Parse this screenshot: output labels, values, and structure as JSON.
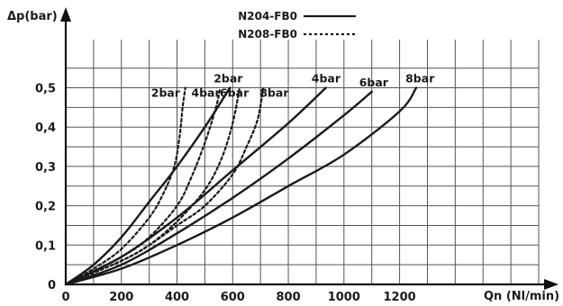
{
  "chart_data": {
    "type": "line",
    "ylabel": "Δp(bar)",
    "xlabel": "Qn (Nl/min)",
    "xlim": [
      0,
      1700
    ],
    "ylim": [
      0,
      0.65
    ],
    "x_ticks": [
      0,
      200,
      400,
      600,
      800,
      1000,
      1200
    ],
    "x_tick_labels": [
      "0",
      "200",
      "400",
      "600",
      "800",
      "1000",
      "1200"
    ],
    "y_ticks": [
      0,
      0.1,
      0.2,
      0.3,
      0.4,
      0.5
    ],
    "y_tick_labels": [
      "0",
      "0,1",
      "0,2",
      "0,3",
      "0,4",
      "0,5"
    ],
    "grid": true,
    "legend": [
      {
        "name": "N204-FB0",
        "style": "solid"
      },
      {
        "name": "N208-FB0",
        "style": "dotted"
      }
    ],
    "series": [
      {
        "label": "2bar",
        "model": "N204-FB0",
        "style": "solid",
        "points": [
          [
            0,
            0
          ],
          [
            100,
            0.05
          ],
          [
            200,
            0.12
          ],
          [
            300,
            0.21
          ],
          [
            400,
            0.3
          ],
          [
            500,
            0.4
          ],
          [
            590,
            0.5
          ]
        ]
      },
      {
        "label": "4bar",
        "model": "N204-FB0",
        "style": "solid",
        "points": [
          [
            0,
            0
          ],
          [
            200,
            0.07
          ],
          [
            400,
            0.17
          ],
          [
            600,
            0.29
          ],
          [
            800,
            0.41
          ],
          [
            935,
            0.5
          ]
        ]
      },
      {
        "label": "6bar",
        "model": "N204-FB0",
        "style": "solid",
        "points": [
          [
            0,
            0
          ],
          [
            200,
            0.05
          ],
          [
            400,
            0.13
          ],
          [
            600,
            0.22
          ],
          [
            800,
            0.32
          ],
          [
            1000,
            0.43
          ],
          [
            1100,
            0.49
          ]
        ]
      },
      {
        "label": "8bar",
        "model": "N204-FB0",
        "style": "solid",
        "points": [
          [
            0,
            0
          ],
          [
            200,
            0.04
          ],
          [
            400,
            0.1
          ],
          [
            600,
            0.17
          ],
          [
            800,
            0.25
          ],
          [
            1000,
            0.33
          ],
          [
            1200,
            0.44
          ],
          [
            1260,
            0.5
          ]
        ]
      },
      {
        "label": "2bar",
        "model": "N208-FB0",
        "style": "dotted",
        "points": [
          [
            0,
            0
          ],
          [
            100,
            0.04
          ],
          [
            200,
            0.09
          ],
          [
            300,
            0.17
          ],
          [
            350,
            0.23
          ],
          [
            390,
            0.3
          ],
          [
            410,
            0.38
          ],
          [
            420,
            0.45
          ],
          [
            430,
            0.5
          ]
        ]
      },
      {
        "label": "4bar",
        "model": "N208-FB0",
        "style": "dotted",
        "points": [
          [
            0,
            0
          ],
          [
            200,
            0.07
          ],
          [
            300,
            0.12
          ],
          [
            400,
            0.2
          ],
          [
            450,
            0.27
          ],
          [
            500,
            0.36
          ],
          [
            540,
            0.45
          ],
          [
            555,
            0.5
          ]
        ]
      },
      {
        "label": "6bar",
        "model": "N208-FB0",
        "style": "dotted",
        "points": [
          [
            0,
            0
          ],
          [
            200,
            0.06
          ],
          [
            300,
            0.1
          ],
          [
            400,
            0.16
          ],
          [
            500,
            0.24
          ],
          [
            560,
            0.32
          ],
          [
            600,
            0.41
          ],
          [
            625,
            0.5
          ]
        ]
      },
      {
        "label": "8bar",
        "model": "N208-FB0",
        "style": "dotted",
        "points": [
          [
            0,
            0
          ],
          [
            200,
            0.06
          ],
          [
            300,
            0.1
          ],
          [
            400,
            0.15
          ],
          [
            500,
            0.2
          ],
          [
            600,
            0.28
          ],
          [
            650,
            0.35
          ],
          [
            690,
            0.42
          ],
          [
            710,
            0.5
          ]
        ]
      }
    ]
  }
}
